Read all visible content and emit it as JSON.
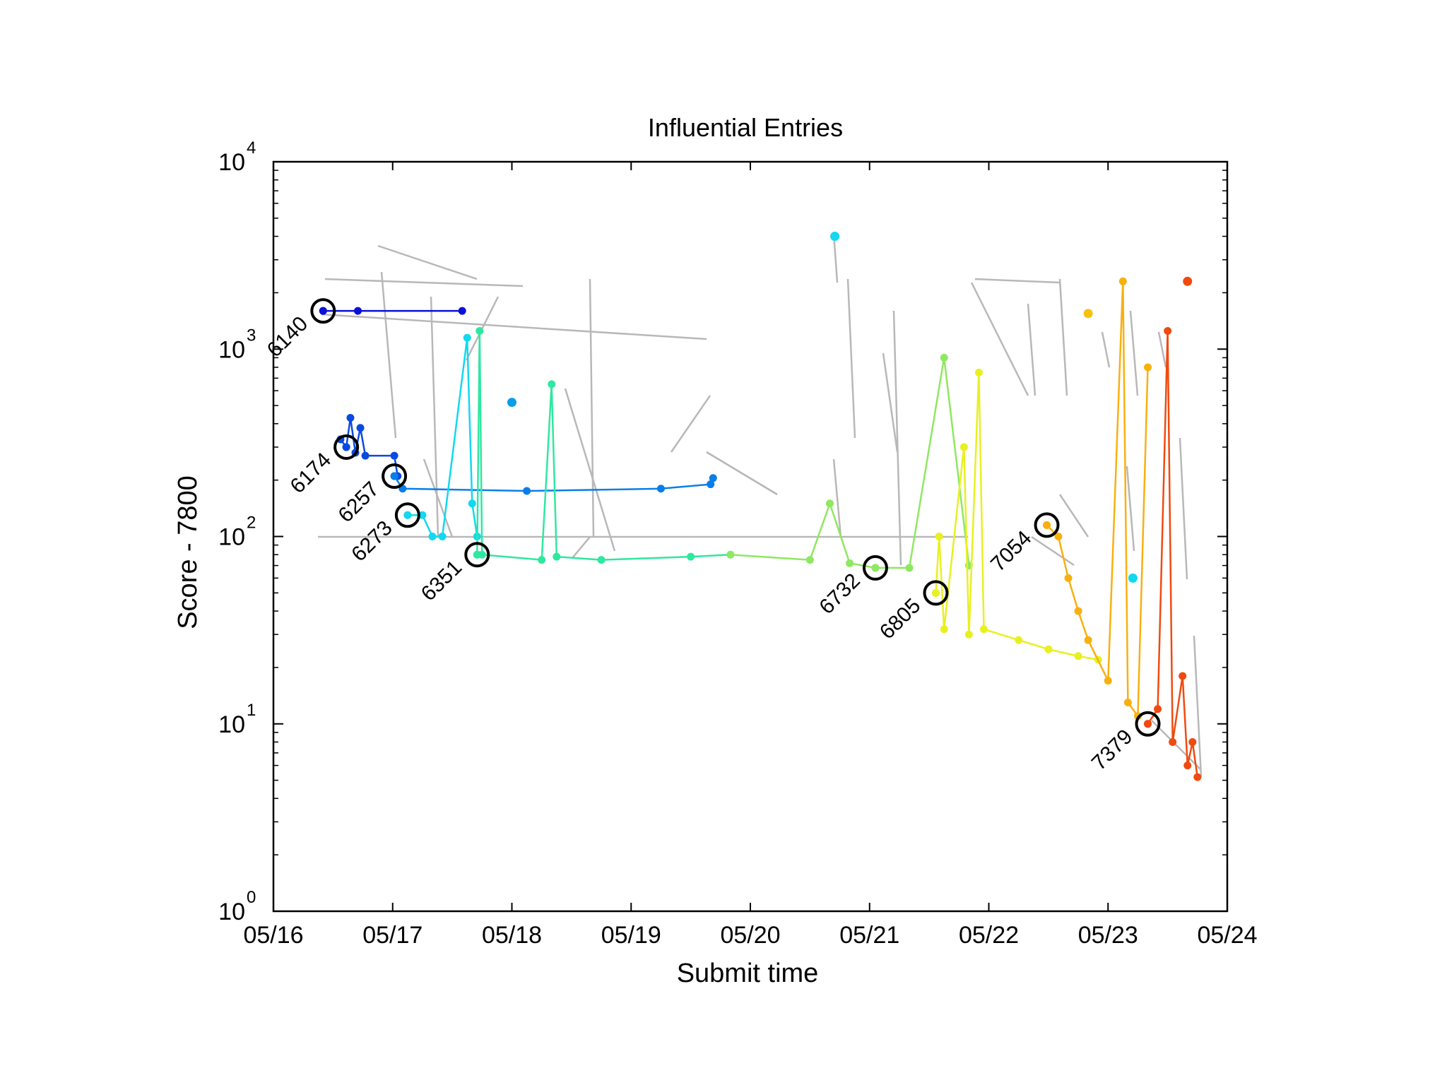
{
  "chart_data": {
    "type": "scatter",
    "title": "Influential Entries",
    "xlabel": "Submit time",
    "ylabel": "Score - 7800",
    "yscale": "log",
    "xlim": [
      "05/16",
      "05/24"
    ],
    "ylim": [
      1,
      10000
    ],
    "x_ticks": [
      "05/16",
      "05/17",
      "05/18",
      "05/19",
      "05/20",
      "05/21",
      "05/22",
      "05/23",
      "05/24"
    ],
    "y_ticks": [
      {
        "base": "10",
        "exp": "0",
        "value": 1
      },
      {
        "base": "10",
        "exp": "1",
        "value": 10
      },
      {
        "base": "10",
        "exp": "2",
        "value": 100
      },
      {
        "base": "10",
        "exp": "3",
        "value": 1000
      },
      {
        "base": "10",
        "exp": "4",
        "value": 10000
      }
    ],
    "grid": false,
    "colors": {
      "background_lines": "#b8b8b8",
      "marker_ring": "#000000",
      "axis": "#000000"
    },
    "influential": [
      {
        "label": "6140",
        "x": "05/16 10:00",
        "y": 1600,
        "color": "#0a10d8"
      },
      {
        "label": "6174",
        "x": "05/16 14:40",
        "y": 300,
        "color": "#0a4ae0"
      },
      {
        "label": "6257",
        "x": "05/17 00:20",
        "y": 210,
        "color": "#0a7ee8"
      },
      {
        "label": "6273",
        "x": "05/17 03:00",
        "y": 130,
        "color": "#12d8f0"
      },
      {
        "label": "6351",
        "x": "05/17 17:00",
        "y": 80,
        "color": "#2ee8a0"
      },
      {
        "label": "6732",
        "x": "05/21 01:10",
        "y": 68,
        "color": "#8ee860"
      },
      {
        "label": "6805",
        "x": "05/21 13:20",
        "y": 50,
        "color": "#e8f020"
      },
      {
        "label": "7054",
        "x": "05/22 11:40",
        "y": 115,
        "color": "#f8b010"
      },
      {
        "label": "7379",
        "x": "05/23 08:00",
        "y": 10,
        "color": "#f04a10"
      }
    ],
    "series": [
      {
        "color": "#0a10d8",
        "points": [
          [
            "05/16 10:00",
            1600
          ],
          [
            "05/16 17:00",
            1600
          ],
          [
            "05/17 14:00",
            1600
          ]
        ]
      },
      {
        "color": "#0a4ae0",
        "points": [
          [
            "05/16 13:30",
            330
          ],
          [
            "05/16 14:40",
            300
          ],
          [
            "05/16 15:30",
            430
          ],
          [
            "05/16 16:30",
            280
          ],
          [
            "05/16 17:30",
            380
          ],
          [
            "05/16 18:30",
            270
          ],
          [
            "05/17 00:20",
            270
          ],
          [
            "05/17 01:00",
            210
          ]
        ]
      },
      {
        "color": "#0a7ee8",
        "points": [
          [
            "05/17 00:20",
            210
          ],
          [
            "05/17 02:00",
            180
          ],
          [
            "05/18 03:00",
            175
          ],
          [
            "05/19 06:00",
            180
          ],
          [
            "05/19 16:00",
            190
          ],
          [
            "05/19 16:30",
            205
          ]
        ]
      },
      {
        "color": "#12d8f0",
        "points": [
          [
            "05/17 03:00",
            130
          ],
          [
            "05/17 06:00",
            130
          ],
          [
            "05/17 08:00",
            100
          ],
          [
            "05/17 10:00",
            100
          ],
          [
            "05/17 15:00",
            1150
          ],
          [
            "05/17 16:00",
            150
          ],
          [
            "05/17 17:00",
            100
          ]
        ]
      },
      {
        "color": "#2ee8a0",
        "points": [
          [
            "05/17 17:00",
            80
          ],
          [
            "05/17 17:30",
            1250
          ],
          [
            "05/17 18:00",
            80
          ],
          [
            "05/18 06:00",
            75
          ],
          [
            "05/18 08:00",
            650
          ],
          [
            "05/18 09:00",
            78
          ],
          [
            "05/18 18:00",
            75
          ],
          [
            "05/19 12:00",
            78
          ],
          [
            "05/19 20:00",
            80
          ]
        ]
      },
      {
        "color": "#8ee860",
        "points": [
          [
            "05/19 20:00",
            80
          ],
          [
            "05/20 12:00",
            75
          ],
          [
            "05/20 16:00",
            150
          ],
          [
            "05/20 20:00",
            72
          ],
          [
            "05/21 01:10",
            68
          ],
          [
            "05/21 08:00",
            68
          ],
          [
            "05/21 15:00",
            900
          ],
          [
            "05/21 20:00",
            70
          ]
        ]
      },
      {
        "color": "#e8f020",
        "points": [
          [
            "05/21 13:20",
            50
          ],
          [
            "05/21 14:00",
            100
          ],
          [
            "05/21 15:00",
            32
          ],
          [
            "05/21 19:00",
            300
          ],
          [
            "05/21 20:00",
            30
          ],
          [
            "05/21 22:00",
            750
          ],
          [
            "05/21 23:00",
            32
          ],
          [
            "05/22 06:00",
            28
          ],
          [
            "05/22 12:00",
            25
          ],
          [
            "05/22 18:00",
            23
          ],
          [
            "05/22 22:00",
            22
          ]
        ]
      },
      {
        "color": "#f8b010",
        "points": [
          [
            "05/22 11:40",
            115
          ],
          [
            "05/22 14:00",
            100
          ],
          [
            "05/22 16:00",
            60
          ],
          [
            "05/22 18:00",
            40
          ],
          [
            "05/22 20:00",
            28
          ],
          [
            "05/23 00:00",
            17
          ],
          [
            "05/23 03:00",
            2300
          ],
          [
            "05/23 04:00",
            13
          ],
          [
            "05/23 06:00",
            11
          ],
          [
            "05/23 08:00",
            800
          ]
        ]
      },
      {
        "color": "#f04a10",
        "points": [
          [
            "05/23 08:00",
            10
          ],
          [
            "05/23 10:00",
            12
          ],
          [
            "05/23 12:00",
            1250
          ],
          [
            "05/23 13:00",
            8
          ],
          [
            "05/23 15:00",
            18
          ],
          [
            "05/23 16:00",
            6
          ],
          [
            "05/23 17:00",
            8
          ],
          [
            "05/23 18:00",
            5.2
          ]
        ]
      }
    ],
    "isolated_points": [
      {
        "x": "05/18 00:00",
        "y": 520,
        "color": "#0a9ee8"
      },
      {
        "x": "05/20 17:00",
        "y": 4000,
        "color": "#12d8f0"
      },
      {
        "x": "05/23 05:00",
        "y": 60,
        "color": "#12d8f0"
      },
      {
        "x": "05/22 20:00",
        "y": 1550,
        "color": "#f8c010"
      },
      {
        "x": "05/23 16:00",
        "y": 2300,
        "color": "#f04a10"
      }
    ]
  }
}
